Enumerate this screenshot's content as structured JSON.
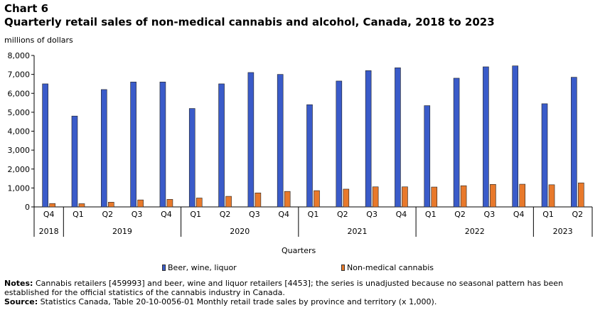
{
  "header": {
    "chart_number": "Chart 6",
    "title": "Quarterly retail sales of non-medical cannabis and alcohol, Canada, 2018 to 2023",
    "unit": "millions of dollars"
  },
  "footer": {
    "notes_label": "Notes:",
    "notes_text": "Cannabis retailers [459993] and beer, wine and liquor retailers [4453]; the series is unadjusted because no seasonal pattern has been established for the official statistics of the cannabis industry in Canada.",
    "source_label": "Source:",
    "source_text": "Statistics Canada, Table 20-10-0056-01 Monthly retail trade sales by province and territory (x 1,000)."
  },
  "colors": {
    "beer": "#3a5bc9",
    "cannabis": "#e8792b"
  },
  "chart_data": {
    "type": "bar",
    "xlabel": "Quarters",
    "ylabel": "millions of dollars",
    "ylim": [
      0,
      8000
    ],
    "yticks": [
      0,
      1000,
      2000,
      3000,
      4000,
      5000,
      6000,
      7000,
      8000
    ],
    "ytick_labels": [
      "0",
      "1,000",
      "2,000",
      "3,000",
      "4,000",
      "5,000",
      "6,000",
      "7,000",
      "8,000"
    ],
    "categories": [
      "Q4",
      "Q1",
      "Q2",
      "Q3",
      "Q4",
      "Q1",
      "Q2",
      "Q3",
      "Q4",
      "Q1",
      "Q2",
      "Q3",
      "Q4",
      "Q1",
      "Q2",
      "Q3",
      "Q4",
      "Q1",
      "Q2"
    ],
    "years": [
      {
        "label": "2018",
        "count": 1
      },
      {
        "label": "2019",
        "count": 4
      },
      {
        "label": "2020",
        "count": 4
      },
      {
        "label": "2021",
        "count": 4
      },
      {
        "label": "2022",
        "count": 4
      },
      {
        "label": "2023",
        "count": 2
      }
    ],
    "series": [
      {
        "name": "Beer, wine, liquor",
        "values": [
          6500,
          4800,
          6200,
          6600,
          6600,
          5200,
          6500,
          7100,
          7000,
          5400,
          6650,
          7200,
          7350,
          5350,
          6800,
          7400,
          7450,
          5450,
          6850
        ]
      },
      {
        "name": "Non-medical cannabis",
        "values": [
          180,
          170,
          250,
          370,
          400,
          470,
          560,
          740,
          820,
          860,
          940,
          1060,
          1060,
          1050,
          1120,
          1190,
          1200,
          1170,
          1270
        ]
      }
    ],
    "legend_position": "bottom",
    "grid": false
  }
}
